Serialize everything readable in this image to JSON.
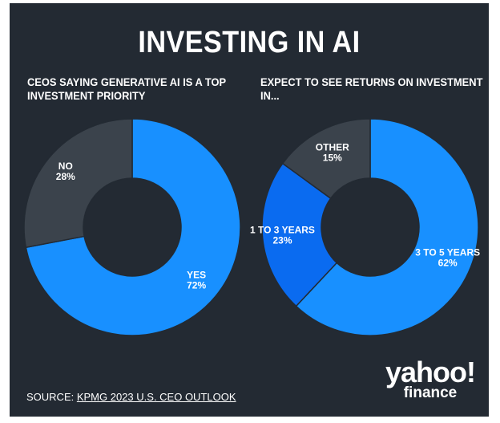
{
  "title": "INVESTING IN AI",
  "colors": {
    "background": "#232a33",
    "yes": "#1890ff",
    "no": "#3b434c",
    "three_to_five": "#1890ff",
    "one_to_three": "#0a6bf0",
    "other": "#3b434c"
  },
  "chart_data": [
    {
      "type": "pie",
      "title_lines": [
        "CEOS SAYING GENERATIVE AI IS A TOP",
        "INVESTMENT PRIORITY"
      ],
      "slices": [
        {
          "name_line1": "YES",
          "name_line2": "72%",
          "label": "YES",
          "value": 72,
          "color": "#1890ff"
        },
        {
          "name_line1": "NO",
          "name_line2": "28%",
          "label": "NO",
          "value": 28,
          "color": "#3b434c"
        }
      ]
    },
    {
      "type": "pie",
      "title_lines": [
        "EXPECT TO SEE RETURNS ON INVESTMENT",
        "IN..."
      ],
      "slices": [
        {
          "name_line1": "3 TO 5 YEARS",
          "name_line2": "62%",
          "label": "3 TO 5 YEARS",
          "value": 62,
          "color": "#1890ff"
        },
        {
          "name_line1": "1 TO 3 YEARS",
          "name_line2": "23%",
          "label": "1 TO 3 YEARS",
          "value": 23,
          "color": "#0a6bf0"
        },
        {
          "name_line1": "OTHER",
          "name_line2": "15%",
          "label": "OTHER",
          "value": 15,
          "color": "#3b434c"
        }
      ]
    }
  ],
  "source": {
    "prefix": "SOURCE: ",
    "link": "KPMG 2023 U.S. CEO OUTLOOK"
  },
  "logo": {
    "top": "yahoo!",
    "bottom": "finance"
  }
}
